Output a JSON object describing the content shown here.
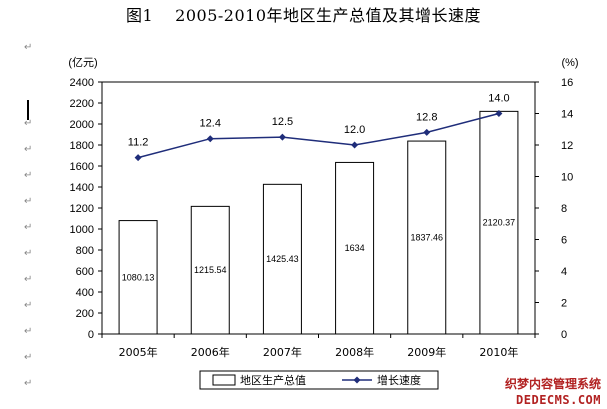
{
  "title": {
    "figure": "图1",
    "text": "2005-2010年地区生产总值及其增长速度"
  },
  "para_mark": "↵",
  "watermark": {
    "line1": "织梦内容管理系统",
    "line2": "DEDECMS.COM"
  },
  "chart_data": {
    "type": "bar",
    "categories": [
      "2005年",
      "2006年",
      "2007年",
      "2008年",
      "2009年",
      "2010年"
    ],
    "series": [
      {
        "name": "地区生产总值",
        "type": "bar",
        "axis": "left",
        "values": [
          1080.13,
          1215.54,
          1425.43,
          1634,
          1837.46,
          2120.37
        ],
        "labels": [
          "1080.13",
          "1215.54",
          "1425.43",
          "1634",
          "1837.46",
          "2120.37"
        ]
      },
      {
        "name": "增长速度",
        "type": "line",
        "axis": "right",
        "values": [
          11.2,
          12.4,
          12.5,
          12.0,
          12.8,
          14.0
        ],
        "labels": [
          "11.2",
          "12.4",
          "12.5",
          "12.0",
          "12.8",
          "14.0"
        ]
      }
    ],
    "ylabel_left": "(亿元)",
    "ylabel_right": "(%)",
    "ylim_left": [
      0,
      2400
    ],
    "ylim_right": [
      0,
      16
    ],
    "yticks_left": [
      "0",
      "200",
      "400",
      "600",
      "800",
      "1000",
      "1200",
      "1400",
      "1600",
      "1800",
      "2000",
      "2200",
      "2400"
    ],
    "yticks_right": [
      "0",
      "2",
      "4",
      "6",
      "8",
      "10",
      "12",
      "14",
      "16"
    ],
    "grid": false,
    "legend_position": "bottom",
    "colors": {
      "bar_fill": "#ffffff",
      "bar_stroke": "#000000",
      "line": "#1f2d7a",
      "marker": "#1f2d7a"
    }
  }
}
